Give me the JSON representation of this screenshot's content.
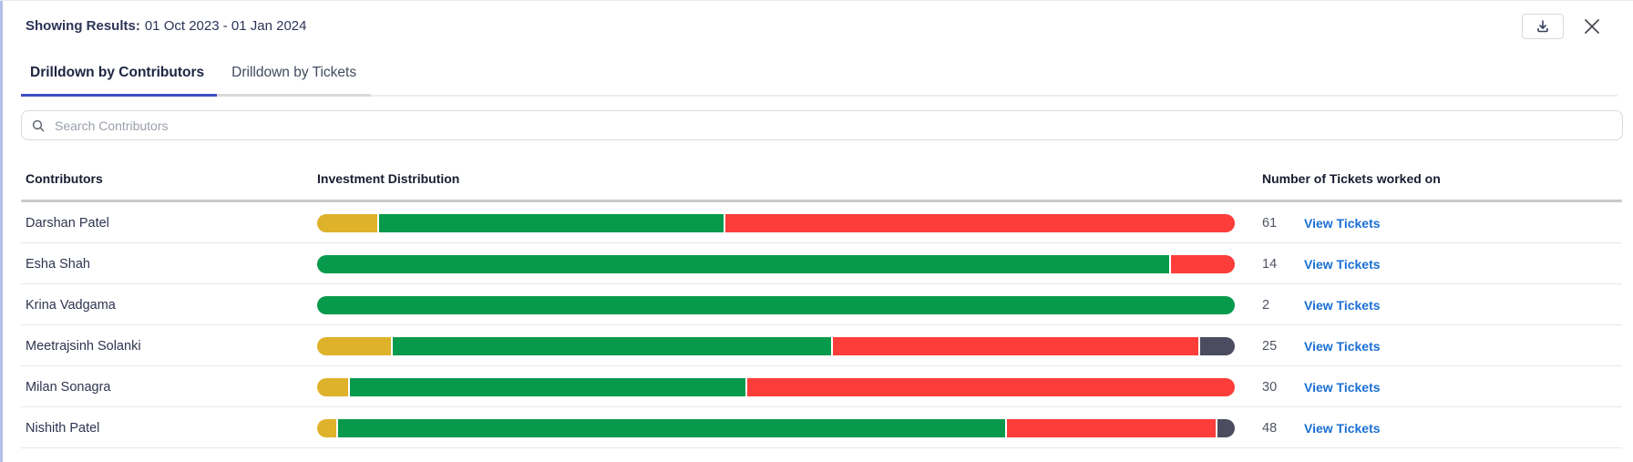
{
  "header": {
    "label": "Showing Results:",
    "date_range": "01 Oct 2023 - 01 Jan 2024"
  },
  "toolbar": {
    "close_glyph": "✕"
  },
  "icons": {
    "download": "tray-arrow-down",
    "close": "x-mark",
    "search": "magnifier"
  },
  "tabs": [
    {
      "label": "Drilldown by Contributors",
      "active": true
    },
    {
      "label": "Drilldown by Tickets",
      "active": false
    }
  ],
  "search": {
    "value": "",
    "placeholder": "Search Contributors"
  },
  "table": {
    "columns": [
      "Contributors",
      "Investment Distribution",
      "Number of Tickets worked on"
    ],
    "link_label": "View Tickets",
    "rows": [
      {
        "name": "Darshan Patel",
        "tickets": "61",
        "segments": [
          {
            "color": "yellow",
            "pct": 6.56
          },
          {
            "color": "green",
            "pct": 37.7
          },
          {
            "color": "red",
            "pct": 55.74
          }
        ]
      },
      {
        "name": "Esha Shah",
        "tickets": "14",
        "segments": [
          {
            "color": "green",
            "pct": 92.86
          },
          {
            "color": "red",
            "pct": 7.14
          }
        ]
      },
      {
        "name": "Krina Vadgama",
        "tickets": "2",
        "segments": [
          {
            "color": "green",
            "pct": 100
          }
        ]
      },
      {
        "name": "Meetrajsinh Solanki",
        "tickets": "25",
        "segments": [
          {
            "color": "yellow",
            "pct": 8
          },
          {
            "color": "green",
            "pct": 48
          },
          {
            "color": "red",
            "pct": 40
          },
          {
            "color": "slate",
            "pct": 4
          }
        ]
      },
      {
        "name": "Milan Sonagra",
        "tickets": "30",
        "segments": [
          {
            "color": "yellow",
            "pct": 3.33
          },
          {
            "color": "green",
            "pct": 43.34
          },
          {
            "color": "red",
            "pct": 53.33
          }
        ]
      },
      {
        "name": "Nishith Patel",
        "tickets": "48",
        "segments": [
          {
            "color": "yellow",
            "pct": 2.08
          },
          {
            "color": "green",
            "pct": 72.92
          },
          {
            "color": "red",
            "pct": 22.92
          },
          {
            "color": "slate",
            "pct": 2.08
          }
        ]
      }
    ]
  },
  "colors": {
    "yellow": "#DFB22B",
    "green": "#089A4C",
    "red": "#FC3D39",
    "slate": "#4C4C60",
    "link_blue": "#1A6FD4",
    "active_tab_underline": "#3C4EC5",
    "left_stripe": "#B4BFE8"
  }
}
